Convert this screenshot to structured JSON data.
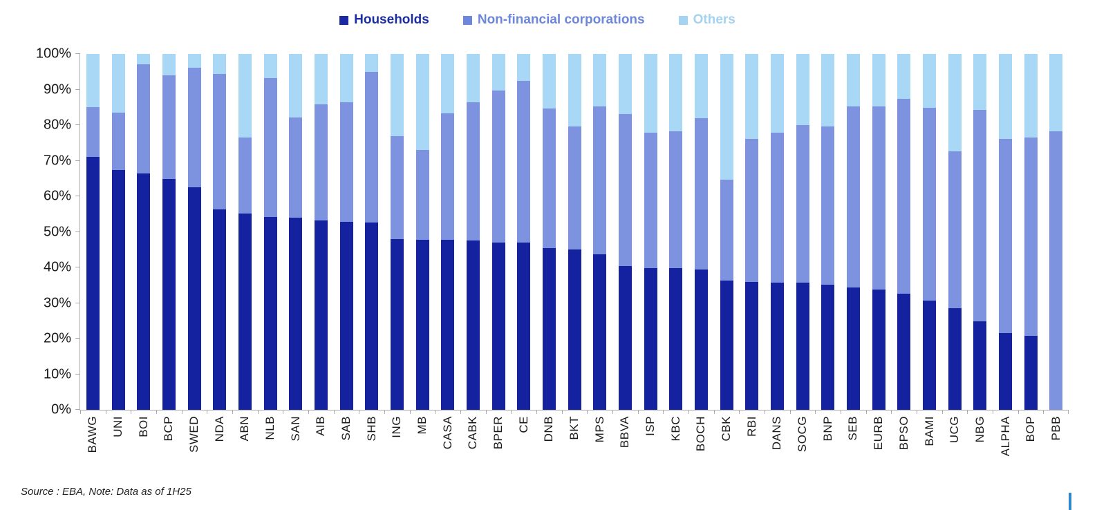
{
  "page": {
    "background": "#ffffff"
  },
  "legend": {
    "items": [
      {
        "label": "Households",
        "swatch_color": "#1b2aa3",
        "text_color": "#1d2f9f"
      },
      {
        "label": "Non-financial corporations",
        "swatch_color": "#6e87da",
        "text_color": "#6e87d8"
      },
      {
        "label": "Others",
        "swatch_color": "#a5d3f2",
        "text_color": "#a5d2f0"
      }
    ]
  },
  "chart_data": {
    "type": "bar",
    "stacked": true,
    "stacked_to_100_percent": true,
    "title": "",
    "xlabel": "",
    "ylabel": "",
    "ylim": [
      0,
      100
    ],
    "grid": false,
    "legend_position": "top-center",
    "y_tick_labels": [
      "0%",
      "10%",
      "20%",
      "30%",
      "40%",
      "50%",
      "60%",
      "70%",
      "80%",
      "90%",
      "100%"
    ],
    "categories": [
      "BAWG",
      "UNI",
      "BOI",
      "BCP",
      "SWED",
      "NDA",
      "ABN",
      "NLB",
      "SAN",
      "AIB",
      "SAB",
      "SHB",
      "ING",
      "MB",
      "CASA",
      "CABK",
      "BPER",
      "CE",
      "DNB",
      "BKT",
      "MPS",
      "BBVA",
      "ISP",
      "KBC",
      "BOCH",
      "CBK",
      "RBI",
      "DANS",
      "SOCG",
      "BNP",
      "SEB",
      "EURB",
      "BPSO",
      "BAMI",
      "UCG",
      "NBG",
      "ALPHA",
      "BOP",
      "PBB"
    ],
    "series": [
      {
        "name": "Households",
        "color": "#1522a0",
        "values": [
          71.0,
          67.3,
          66.5,
          64.9,
          62.6,
          56.4,
          55.2,
          54.1,
          53.9,
          53.2,
          52.9,
          52.6,
          47.9,
          47.8,
          47.7,
          47.5,
          47.0,
          46.9,
          45.5,
          45.0,
          43.7,
          40.3,
          39.9,
          39.8,
          39.5,
          36.4,
          36.0,
          35.8,
          35.7,
          35.1,
          34.3,
          33.8,
          32.7,
          30.7,
          28.5,
          24.9,
          21.5,
          20.7,
          0.0
        ]
      },
      {
        "name": "Non-financial corporations",
        "color": "#7d93e0",
        "values": [
          14.0,
          16.2,
          30.5,
          29.1,
          33.6,
          38.0,
          21.4,
          39.2,
          28.2,
          32.6,
          33.6,
          42.3,
          28.9,
          25.3,
          35.6,
          39.0,
          42.8,
          45.5,
          39.1,
          34.6,
          41.6,
          42.9,
          37.9,
          38.4,
          42.4,
          28.2,
          40.2,
          42.1,
          44.3,
          44.6,
          50.9,
          51.4,
          54.7,
          54.1,
          44.1,
          59.3,
          54.6,
          55.9,
          78.2
        ]
      },
      {
        "name": "Others",
        "color": "#a9d7f6",
        "values": [
          15.0,
          16.5,
          3.0,
          6.0,
          3.8,
          5.6,
          23.4,
          6.7,
          17.9,
          14.2,
          13.5,
          5.1,
          23.2,
          26.9,
          16.7,
          13.5,
          10.2,
          7.6,
          15.4,
          20.4,
          14.7,
          16.8,
          22.2,
          21.8,
          18.1,
          35.4,
          23.8,
          22.1,
          20.0,
          20.3,
          14.8,
          14.8,
          12.6,
          15.2,
          27.4,
          15.8,
          23.9,
          23.4,
          21.8
        ]
      }
    ]
  },
  "footer": {
    "source_note": "Source : EBA, Note: Data as of 1H25"
  },
  "decoration": {
    "corner_mark_color": "#2f86c8"
  }
}
